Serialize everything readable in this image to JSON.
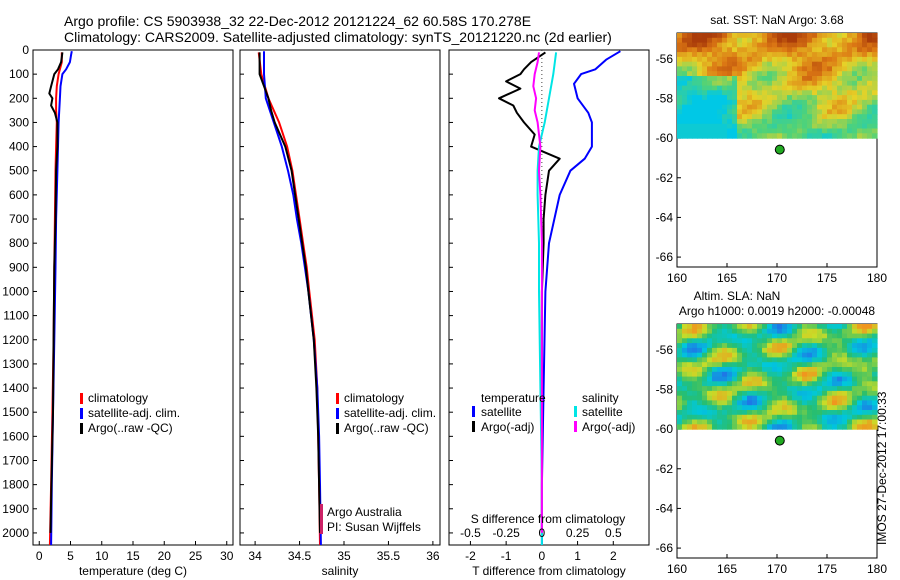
{
  "header": {
    "line1": "Argo profile: CS 5903938_32 22-Dec-2012 20121224_62 60.58S 170.278E",
    "line2": "Climatology: CARS2009. Satellite-adjusted climatology: synTS_20121220.nc (2d earlier)"
  },
  "side_stamp": "IMOS 27-Dec-2012 17:00:33",
  "colors": {
    "climatology": "#ff0000",
    "satellite": "#0000ff",
    "argo": "#000000",
    "sal_satellite": "#00e5e5",
    "sal_argo": "#ff00ff"
  },
  "chart_data": [
    {
      "id": "temperature",
      "type": "line",
      "xlabel": "temperature (deg C)",
      "ylabel": "",
      "xlim": [
        -1,
        31
      ],
      "ylim": [
        2050,
        0
      ],
      "xticks": [
        0,
        5,
        10,
        15,
        20,
        25,
        30
      ],
      "yticks": [
        0,
        100,
        200,
        300,
        400,
        500,
        600,
        700,
        800,
        900,
        1000,
        1100,
        1200,
        1300,
        1400,
        1500,
        1600,
        1700,
        1800,
        1900,
        2000
      ],
      "legend": [
        "climatology",
        "satellite-adj. clim.",
        "Argo(..raw -QC)"
      ],
      "series": [
        {
          "name": "climatology",
          "color": "#ff0000",
          "depth": [
            10,
            50,
            100,
            150,
            200,
            250,
            300,
            400,
            500,
            700,
            900,
            1200,
            1500,
            1800,
            2050
          ],
          "values": [
            3.6,
            3.6,
            3.1,
            2.8,
            2.7,
            2.7,
            2.8,
            2.7,
            2.6,
            2.5,
            2.4,
            2.3,
            2.1,
            1.9,
            1.7
          ]
        },
        {
          "name": "satellite-adj. clim.",
          "color": "#0000ff",
          "depth": [
            5,
            20,
            50,
            80,
            100,
            150,
            200,
            300,
            400,
            500,
            700,
            900,
            1200,
            1500,
            1800,
            1950,
            2050
          ],
          "values": [
            5.2,
            5.1,
            4.9,
            4.3,
            3.7,
            3.4,
            3.3,
            3.1,
            3.0,
            2.9,
            2.7,
            2.6,
            2.4,
            2.2,
            2.0,
            1.95,
            1.9
          ]
        },
        {
          "name": "Argo(..raw -QC)",
          "color": "#000000",
          "depth": [
            10,
            30,
            50,
            80,
            100,
            150,
            180,
            200,
            230,
            260,
            300,
            400,
            500,
            700,
            900,
            1200,
            1500,
            1800,
            2000
          ],
          "values": [
            3.7,
            3.6,
            3.5,
            3.0,
            2.4,
            1.9,
            1.6,
            2.1,
            1.9,
            2.5,
            2.9,
            2.9,
            2.7,
            2.6,
            2.4,
            2.3,
            2.2,
            1.95,
            1.8
          ]
        }
      ]
    },
    {
      "id": "salinity",
      "type": "line",
      "xlabel": "salinity",
      "ylabel": "",
      "xlim": [
        33.83,
        36.08
      ],
      "ylim": [
        2050,
        0
      ],
      "xticks": [
        34,
        34.5,
        35,
        35.5,
        36
      ],
      "legend": [
        "climatology",
        "satellite-adj. clim.",
        "Argo(..raw -QC)"
      ],
      "annotations": [
        "Argo Australia",
        "PI: Susan Wijffels"
      ],
      "series": [
        {
          "name": "climatology",
          "color": "#ff0000",
          "depth": [
            10,
            100,
            200,
            300,
            400,
            500,
            600,
            700,
            800,
            900,
            1000,
            1100,
            1200,
            1400,
            1600,
            1800,
            2050
          ],
          "values": [
            34.04,
            34.07,
            34.15,
            34.27,
            34.36,
            34.42,
            34.46,
            34.5,
            34.54,
            34.58,
            34.61,
            34.64,
            34.67,
            34.7,
            34.71,
            34.72,
            34.73
          ]
        },
        {
          "name": "satellite-adj. clim.",
          "color": "#0000ff",
          "depth": [
            5,
            50,
            100,
            200,
            300,
            400,
            500,
            600,
            700,
            800,
            900,
            1000,
            1100,
            1200,
            1400,
            1600,
            1800,
            2050
          ],
          "values": [
            34.1,
            34.1,
            34.1,
            34.12,
            34.21,
            34.3,
            34.37,
            34.43,
            34.47,
            34.52,
            34.56,
            34.6,
            34.63,
            34.66,
            34.7,
            34.72,
            34.73,
            34.74
          ]
        },
        {
          "name": "Argo(..raw -QC)",
          "color": "#000000",
          "depth": [
            10,
            100,
            150,
            200,
            250,
            300,
            400,
            500,
            600,
            700,
            800,
            900,
            1000,
            1100,
            1200,
            1400,
            1600,
            1800,
            2000
          ],
          "values": [
            34.05,
            34.05,
            34.1,
            34.15,
            34.18,
            34.22,
            34.34,
            34.41,
            34.45,
            34.49,
            34.53,
            34.57,
            34.6,
            34.63,
            34.66,
            34.69,
            34.71,
            34.72,
            34.73
          ]
        }
      ]
    },
    {
      "id": "difference",
      "type": "line",
      "xlabel": "T difference from climatology",
      "xlabel_top": "S difference from climatology",
      "xlim": [
        -2.6,
        3.0
      ],
      "ylim": [
        2050,
        0
      ],
      "xticks": [
        -2,
        -1,
        0,
        1,
        2
      ],
      "sticks": [
        "-0.5",
        "-0.25",
        "0",
        "0.25",
        "0.5"
      ],
      "legend_temperature": {
        "title": "temperature",
        "items": [
          "satellite",
          "Argo(-adj)"
        ]
      },
      "legend_salinity": {
        "title": "salinity",
        "items": [
          "satellite",
          "Argo(-adj)"
        ]
      },
      "series": [
        {
          "name": "T satellite",
          "color": "#0000ff",
          "depth": [
            5,
            40,
            80,
            100,
            140,
            200,
            260,
            300,
            400,
            450,
            500,
            600,
            800,
            1000,
            1400,
            1800,
            2050
          ],
          "values": [
            2.2,
            1.8,
            1.5,
            1.1,
            0.9,
            1.0,
            1.3,
            1.4,
            1.4,
            1.2,
            0.8,
            0.5,
            0.2,
            0.1,
            0.05,
            0.0,
            0.0
          ]
        },
        {
          "name": "T Argo(-adj)",
          "color": "#000000",
          "depth": [
            10,
            50,
            80,
            100,
            130,
            160,
            200,
            230,
            260,
            300,
            350,
            400,
            450,
            500,
            600,
            700,
            800,
            1000,
            1400,
            1800,
            2000
          ],
          "values": [
            0.1,
            -0.3,
            -0.5,
            -0.6,
            -1.0,
            -0.6,
            -1.2,
            -0.8,
            -0.7,
            -0.5,
            -0.2,
            -0.3,
            0.5,
            0.2,
            0.1,
            0.05,
            0.05,
            0.0,
            0.0,
            0.0,
            0.0
          ]
        },
        {
          "name": "S satellite",
          "color": "#00e5e5",
          "depth": [
            10,
            100,
            200,
            300,
            400,
            500,
            600,
            800,
            1000,
            1400,
            1800,
            2050
          ],
          "values": [
            0.1,
            0.08,
            0.05,
            0.02,
            -0.02,
            -0.03,
            -0.03,
            -0.02,
            -0.02,
            -0.01,
            0.0,
            0.0
          ]
        },
        {
          "name": "S Argo(-adj)",
          "color": "#ff00ff",
          "depth": [
            10,
            50,
            100,
            150,
            200,
            250,
            300,
            400,
            500,
            600,
            800,
            1000,
            1400,
            1800,
            2000
          ],
          "values": [
            -0.02,
            -0.03,
            -0.05,
            -0.06,
            -0.04,
            -0.05,
            -0.03,
            -0.01,
            -0.02,
            -0.01,
            0.0,
            0.0,
            0.0,
            0.0,
            0.0
          ]
        }
      ]
    },
    {
      "id": "sst-map",
      "type": "heatmap",
      "title": "sat. SST: NaN Argo: 3.68",
      "xlim": [
        160,
        180
      ],
      "ylim": [
        -66.5,
        -54.7
      ],
      "xticks": [
        160,
        165,
        170,
        175,
        180
      ],
      "yticks": [
        -56,
        -58,
        -60,
        -62,
        -64,
        -66
      ],
      "data_lat_min": -60,
      "point": {
        "lon": 170.278,
        "lat": -60.58,
        "color": "#22aa22"
      },
      "palette": "sst"
    },
    {
      "id": "sla-map",
      "type": "heatmap",
      "title": "Altim. SLA: NaN",
      "subtitle": "Argo h1000: 0.0019 h2000: -0.00048",
      "xlim": [
        160,
        180
      ],
      "ylim": [
        -66.5,
        -54.7
      ],
      "xticks": [
        160,
        165,
        170,
        175,
        180
      ],
      "yticks": [
        -56,
        -58,
        -60,
        -62,
        -64,
        -66
      ],
      "data_lat_min": -60,
      "point": {
        "lon": 170.278,
        "lat": -60.58,
        "color": "#22aa22"
      },
      "palette": "sla"
    }
  ]
}
